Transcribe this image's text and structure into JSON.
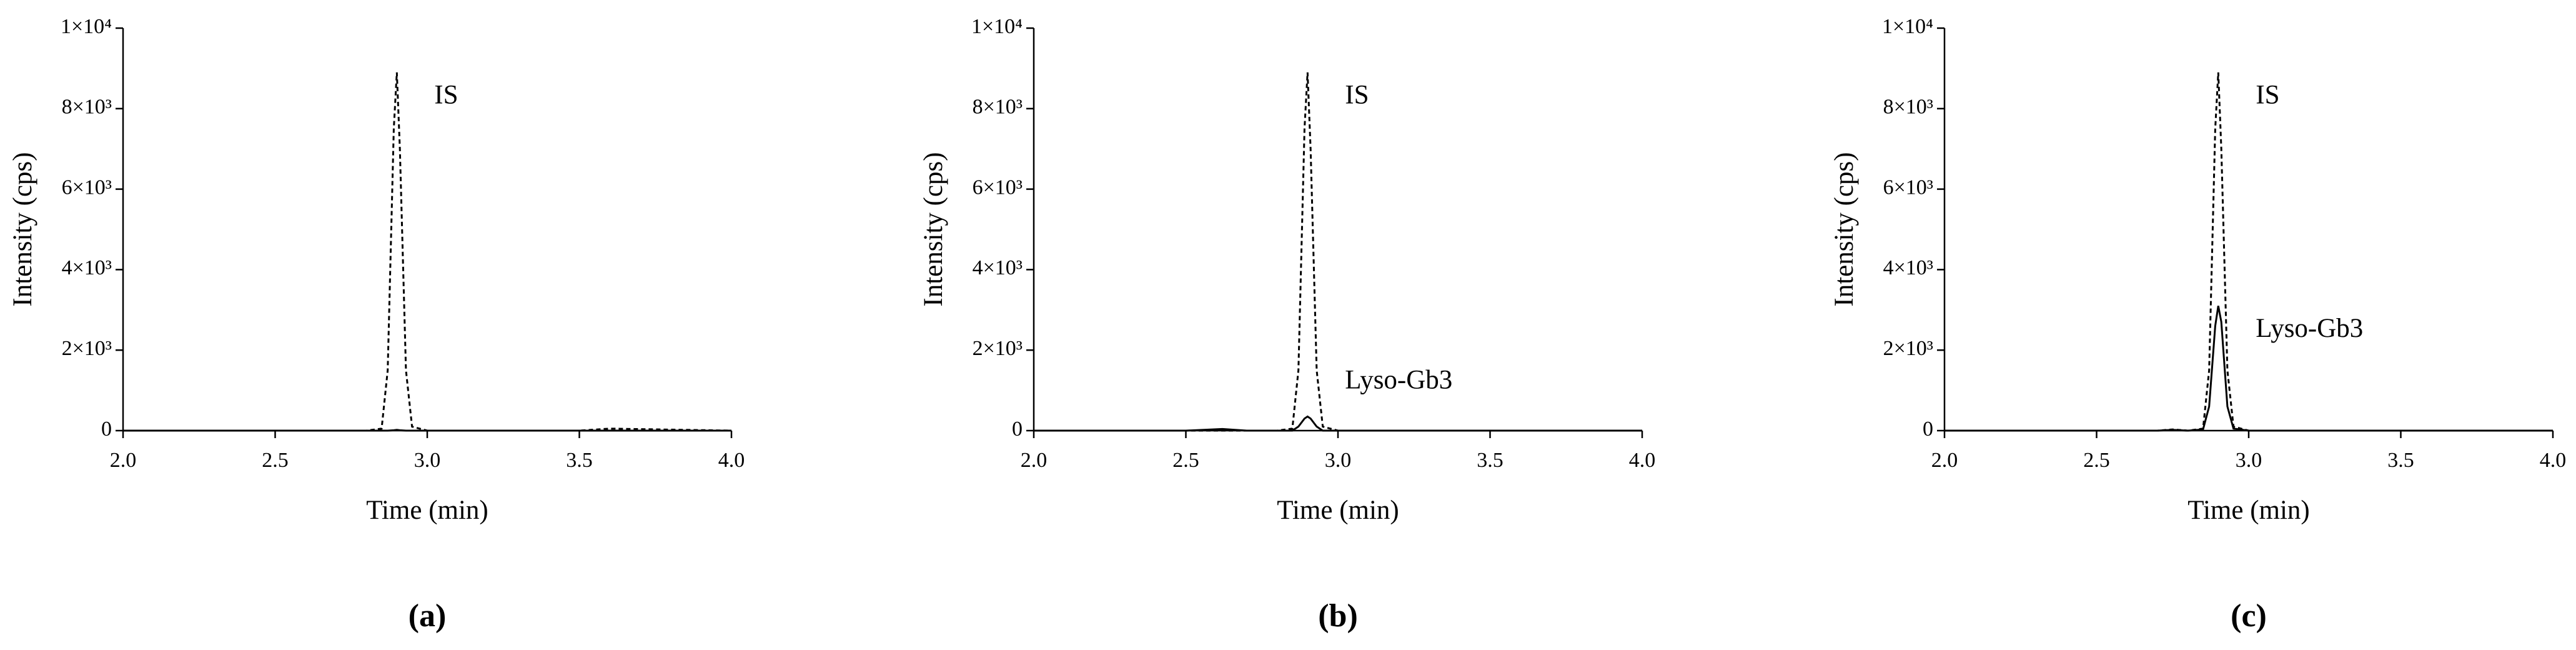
{
  "chart_data": [
    {
      "type": "line",
      "panel_label": "(a)",
      "xlabel": "Time (min)",
      "ylabel": "Intensity (cps)",
      "xlim": [
        2,
        4
      ],
      "ylim": [
        0,
        10000
      ],
      "xticks": [
        {
          "value": 2,
          "label": "2.0"
        },
        2.5,
        {
          "value": 3,
          "label": "3.0"
        },
        3.5,
        {
          "value": 4,
          "label": "4.0"
        }
      ],
      "yticks": [
        0,
        {
          "value": 2000,
          "label": "2×10³"
        },
        {
          "value": 4000,
          "label": "4×10³"
        },
        {
          "value": 6000,
          "label": "6×10³"
        },
        {
          "value": 8000,
          "label": "8×10³"
        },
        {
          "value": 10000,
          "label": "1×10⁴"
        }
      ],
      "x": [
        2.0,
        2.5,
        2.7,
        2.8,
        2.85,
        2.87,
        2.89,
        2.9,
        2.91,
        2.93,
        2.95,
        3.0,
        3.5,
        3.6,
        4.0
      ],
      "series": [
        {
          "name": "IS",
          "color": "#000000",
          "dashed": true,
          "values": [
            0,
            0,
            0,
            0,
            50,
            1500,
            7500,
            8900,
            7000,
            1500,
            100,
            0,
            0,
            50,
            0
          ]
        },
        {
          "color": "#000000",
          "dashed": false,
          "values": [
            0,
            0,
            0,
            0,
            0,
            0,
            10,
            20,
            10,
            0,
            0,
            0,
            0,
            0,
            0
          ]
        }
      ]
    },
    {
      "type": "line",
      "panel_label": "(b)",
      "xlabel": "Time (min)",
      "ylabel": "Intensity (cps)",
      "xlim": [
        2,
        4
      ],
      "ylim": [
        0,
        10000
      ],
      "xticks": [
        {
          "value": 2,
          "label": "2.0"
        },
        2.5,
        {
          "value": 3,
          "label": "3.0"
        },
        3.5,
        {
          "value": 4,
          "label": "4.0"
        }
      ],
      "yticks": [
        0,
        {
          "value": 2000,
          "label": "2×10³"
        },
        {
          "value": 4000,
          "label": "4×10³"
        },
        {
          "value": 6000,
          "label": "6×10³"
        },
        {
          "value": 8000,
          "label": "8×10³"
        },
        {
          "value": 10000,
          "label": "1×10⁴"
        }
      ],
      "x": [
        2.0,
        2.5,
        2.62,
        2.7,
        2.8,
        2.85,
        2.87,
        2.89,
        2.9,
        2.91,
        2.93,
        2.95,
        3.0,
        3.5,
        4.0
      ],
      "series": [
        {
          "name": "IS",
          "color": "#000000",
          "dashed": true,
          "values": [
            0,
            0,
            0,
            0,
            0,
            50,
            1500,
            7500,
            8900,
            7000,
            1500,
            100,
            0,
            0,
            0
          ]
        },
        {
          "name": "Lyso-Gb3",
          "color": "#000000",
          "dashed": false,
          "values": [
            0,
            0,
            40,
            0,
            0,
            0,
            100,
            300,
            350,
            300,
            100,
            0,
            0,
            0,
            0
          ]
        }
      ]
    },
    {
      "type": "line",
      "panel_label": "(c)",
      "xlabel": "Time (min)",
      "ylabel": "Intensity (cps)",
      "xlim": [
        2,
        4
      ],
      "ylim": [
        0,
        10000
      ],
      "xticks": [
        {
          "value": 2,
          "label": "2.0"
        },
        2.5,
        {
          "value": 3,
          "label": "3.0"
        },
        3.5,
        {
          "value": 4,
          "label": "4.0"
        }
      ],
      "yticks": [
        0,
        {
          "value": 2000,
          "label": "2×10³"
        },
        {
          "value": 4000,
          "label": "4×10³"
        },
        {
          "value": 6000,
          "label": "6×10³"
        },
        {
          "value": 8000,
          "label": "8×10³"
        },
        {
          "value": 10000,
          "label": "1×10⁴"
        }
      ],
      "x": [
        2.0,
        2.5,
        2.7,
        2.75,
        2.8,
        2.85,
        2.87,
        2.89,
        2.9,
        2.91,
        2.93,
        2.95,
        3.0,
        3.5,
        4.0
      ],
      "series": [
        {
          "name": "IS",
          "color": "#000000",
          "dashed": true,
          "values": [
            0,
            0,
            0,
            30,
            0,
            50,
            1500,
            7500,
            8900,
            7000,
            1500,
            100,
            0,
            0,
            0
          ]
        },
        {
          "name": "Lyso-Gb3",
          "color": "#000000",
          "dashed": false,
          "values": [
            0,
            0,
            0,
            20,
            0,
            30,
            600,
            2600,
            3100,
            2700,
            600,
            50,
            0,
            0,
            0
          ]
        }
      ]
    }
  ]
}
